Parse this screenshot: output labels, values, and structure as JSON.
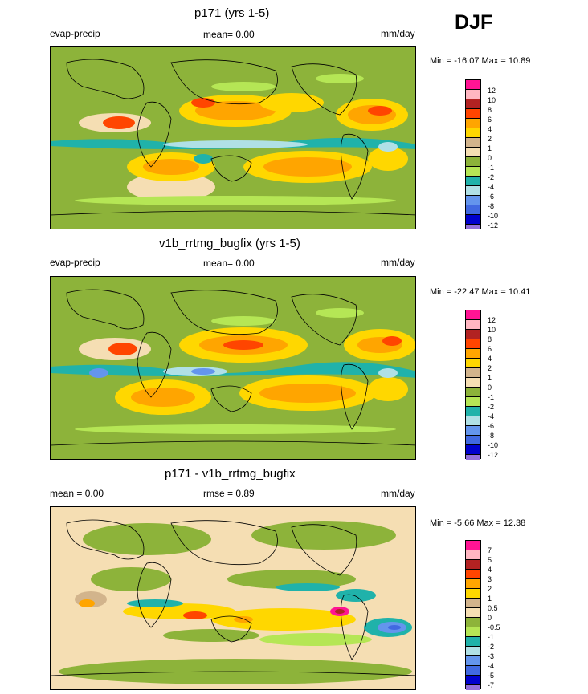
{
  "header": {
    "season": "DJF"
  },
  "panels": [
    {
      "title": "p171 (yrs 1-5)",
      "left_label": "evap-precip",
      "center_label": "mean=   0.00",
      "units": "mm/day",
      "minmax": "Min = -16.07 Max =  10.89",
      "colorbar": {
        "levels": [
          "12",
          "10",
          "8",
          "6",
          "4",
          "2",
          "1",
          "0",
          "-1",
          "-2",
          "-4",
          "-6",
          "-8",
          "-10",
          "-12"
        ],
        "colors": [
          "#ff1493",
          "#ffb6c1",
          "#b22222",
          "#ff4500",
          "#ffa500",
          "#ffd700",
          "#d2b48c",
          "#f5deb3",
          "#8db33a",
          "#b5e655",
          "#20b2aa",
          "#b0e0e6",
          "#6495ed",
          "#4169e1",
          "#0000cd",
          "#9370db"
        ]
      }
    },
    {
      "title": "v1b_rrtmg_bugfix (yrs 1-5)",
      "left_label": "evap-precip",
      "center_label": "mean=   0.00",
      "units": "mm/day",
      "minmax": "Min = -22.47 Max =  10.41",
      "colorbar": {
        "levels": [
          "12",
          "10",
          "8",
          "6",
          "4",
          "2",
          "1",
          "0",
          "-1",
          "-2",
          "-4",
          "-6",
          "-8",
          "-10",
          "-12"
        ],
        "colors": [
          "#ff1493",
          "#ffb6c1",
          "#b22222",
          "#ff4500",
          "#ffa500",
          "#ffd700",
          "#d2b48c",
          "#f5deb3",
          "#8db33a",
          "#b5e655",
          "#20b2aa",
          "#b0e0e6",
          "#6495ed",
          "#4169e1",
          "#0000cd",
          "#9370db"
        ]
      }
    },
    {
      "title": "p171 - v1b_rrtmg_bugfix",
      "left_label": "mean =   0.00",
      "center_label": "rmse =   0.89",
      "units": "mm/day",
      "minmax": "Min =  -5.66 Max =  12.38",
      "colorbar": {
        "levels": [
          "7",
          "5",
          "4",
          "3",
          "2",
          "1",
          "0.5",
          "0",
          "-0.5",
          "-1",
          "-2",
          "-3",
          "-4",
          "-5",
          "-7"
        ],
        "colors": [
          "#ff1493",
          "#ffb6c1",
          "#b22222",
          "#ff4500",
          "#ffa500",
          "#ffd700",
          "#d2b48c",
          "#f5deb3",
          "#8db33a",
          "#b5e655",
          "#20b2aa",
          "#b0e0e6",
          "#6495ed",
          "#4169e1",
          "#0000cd",
          "#9370db"
        ]
      }
    }
  ]
}
